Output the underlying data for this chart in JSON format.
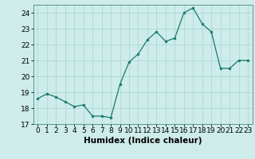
{
  "x": [
    0,
    1,
    2,
    3,
    4,
    5,
    6,
    7,
    8,
    9,
    10,
    11,
    12,
    13,
    14,
    15,
    16,
    17,
    18,
    19,
    20,
    21,
    22,
    23
  ],
  "y": [
    18.6,
    18.9,
    18.7,
    18.4,
    18.1,
    18.2,
    17.5,
    17.5,
    17.4,
    19.5,
    20.9,
    21.4,
    22.3,
    22.8,
    22.2,
    22.4,
    24.0,
    24.3,
    23.3,
    22.8,
    20.5,
    20.5,
    21.0,
    21.0
  ],
  "line_color": "#1a7a6e",
  "marker": "o",
  "marker_size": 2,
  "bg_color": "#cdecea",
  "grid_color": "#a8d5d1",
  "xlabel": "Humidex (Indice chaleur)",
  "xlim": [
    -0.5,
    23.5
  ],
  "ylim": [
    17.0,
    24.5
  ],
  "yticks": [
    17,
    18,
    19,
    20,
    21,
    22,
    23,
    24
  ],
  "xticks": [
    0,
    1,
    2,
    3,
    4,
    5,
    6,
    7,
    8,
    9,
    10,
    11,
    12,
    13,
    14,
    15,
    16,
    17,
    18,
    19,
    20,
    21,
    22,
    23
  ],
  "tick_fontsize": 6.5,
  "label_fontsize": 7.5
}
